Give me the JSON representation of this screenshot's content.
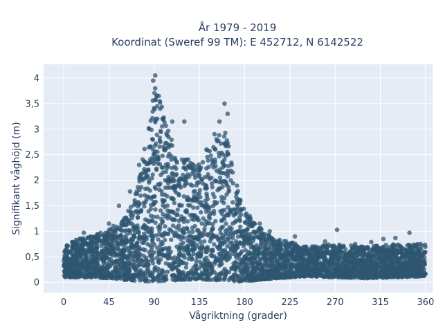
{
  "chart_data": {
    "type": "scatter",
    "title_line1": "År 1979 - 2019",
    "title_line2": "Koordinat (Sweref 99 TM): E 452712, N 6142522",
    "xlabel": "Vågriktning (grader)",
    "ylabel": "Signifikant våghöjd (m)",
    "xlim": [
      -20,
      367
    ],
    "ylim": [
      -0.2,
      4.27
    ],
    "x_ticks": [
      0,
      45,
      90,
      135,
      180,
      225,
      270,
      315,
      360
    ],
    "x_tick_labels": [
      "0",
      "45",
      "90",
      "135",
      "180",
      "225",
      "270",
      "315",
      "360"
    ],
    "y_ticks": [
      0,
      0.5,
      1,
      1.5,
      2,
      2.5,
      3,
      3.5,
      4
    ],
    "y_tick_labels": [
      "0",
      "0,5",
      "1",
      "1,5",
      "2",
      "2,5",
      "3",
      "3,5",
      "4"
    ],
    "grid": true,
    "marker_color": "#2f5670",
    "plot_bgcolor": "#e5ecf6",
    "envelope": {
      "x": [
        0,
        15,
        30,
        45,
        60,
        70,
        80,
        88,
        92,
        100,
        110,
        120,
        130,
        140,
        150,
        158,
        165,
        172,
        180,
        190,
        200,
        210,
        225,
        240,
        270,
        300,
        330,
        360
      ],
      "ymin": [
        0.1,
        0.1,
        0.1,
        0.08,
        0.05,
        0.03,
        0.02,
        0.02,
        0.02,
        0.03,
        0.04,
        0.05,
        0.05,
        0.05,
        0.04,
        0.03,
        0.02,
        0.02,
        0.02,
        0.04,
        0.06,
        0.08,
        0.1,
        0.12,
        0.1,
        0.08,
        0.1,
        0.12
      ],
      "ymax": [
        0.75,
        0.85,
        0.95,
        1.05,
        1.25,
        1.6,
        2.6,
        3.6,
        3.85,
        3.3,
        2.6,
        2.45,
        2.35,
        2.5,
        2.8,
        3.1,
        2.7,
        2.0,
        1.4,
        1.15,
        1.0,
        0.85,
        0.8,
        0.7,
        0.75,
        0.7,
        0.75,
        0.75
      ]
    },
    "outliers": [
      {
        "x": 91,
        "y": 4.05
      },
      {
        "x": 89,
        "y": 3.95
      },
      {
        "x": 91,
        "y": 3.8
      },
      {
        "x": 160,
        "y": 3.5
      },
      {
        "x": 120,
        "y": 3.15
      },
      {
        "x": 163,
        "y": 3.3
      },
      {
        "x": 155,
        "y": 3.15
      },
      {
        "x": 142,
        "y": 2.6
      },
      {
        "x": 150,
        "y": 2.9
      },
      {
        "x": 272,
        "y": 1.03
      },
      {
        "x": 330,
        "y": 0.87
      },
      {
        "x": 344,
        "y": 0.97
      },
      {
        "x": 318,
        "y": 0.85
      },
      {
        "x": 290,
        "y": 0.75
      },
      {
        "x": 306,
        "y": 0.79
      },
      {
        "x": 260,
        "y": 0.8
      },
      {
        "x": 20,
        "y": 0.97
      },
      {
        "x": 45,
        "y": 1.15
      },
      {
        "x": 55,
        "y": 1.5
      },
      {
        "x": 66,
        "y": 1.78
      },
      {
        "x": 75,
        "y": 2.3
      },
      {
        "x": 108,
        "y": 3.15
      },
      {
        "x": 185,
        "y": 1.3
      },
      {
        "x": 195,
        "y": 1.15
      },
      {
        "x": 205,
        "y": 1.0
      },
      {
        "x": 230,
        "y": 0.9
      },
      {
        "x": 355,
        "y": 0.75
      }
    ]
  }
}
